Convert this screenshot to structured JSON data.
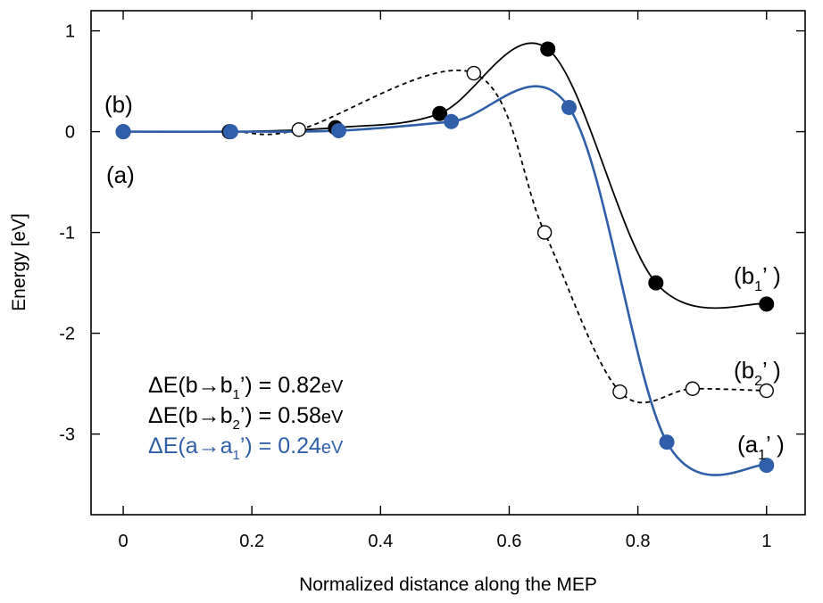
{
  "chart_data": {
    "type": "line",
    "title": "",
    "xlabel": "Normalized distance along the MEP",
    "ylabel": "Energy [eV]",
    "xlim": [
      -0.05,
      1.06
    ],
    "ylim": [
      -3.8,
      1.2
    ],
    "xticks": [
      0,
      0.2,
      0.4,
      0.6,
      0.8,
      1
    ],
    "xtick_labels": [
      "0",
      "0.2",
      "0.4",
      "0.6",
      "0.8",
      "1"
    ],
    "yticks": [
      1,
      0,
      -1,
      -2,
      -3
    ],
    "ytick_labels": [
      "1",
      "0",
      "-1",
      "-2",
      "-3"
    ],
    "grid": false,
    "series": [
      {
        "marker": "filled-circle",
        "line": "solid",
        "color": "#000000",
        "x": [
          0,
          0.165,
          0.33,
          0.492,
          0.66,
          0.828,
          1.0
        ],
        "y": [
          0.0,
          0.0,
          0.04,
          0.18,
          0.82,
          -1.5,
          -1.71
        ]
      },
      {
        "marker": "open-circle",
        "line": "dashed",
        "color": "#000000",
        "x": [
          0,
          0.165,
          0.273,
          0.545,
          0.655,
          0.772,
          0.885,
          1.0
        ],
        "y": [
          0.0,
          0.0,
          0.02,
          0.58,
          -1.0,
          -2.58,
          -2.55,
          -2.57
        ]
      },
      {
        "marker": "filled-circle",
        "line": "solid",
        "color": "#2f5fa8",
        "x": [
          0,
          0.167,
          0.335,
          0.51,
          0.693,
          0.845,
          1.0
        ],
        "y": [
          0.0,
          0.0,
          0.01,
          0.1,
          0.24,
          -3.08,
          -3.31
        ]
      }
    ],
    "annotations": {
      "b_start": "(b)",
      "a_start": "(a)",
      "b1_end": {
        "main": "(b",
        "sub": "1",
        "tail": "’ )"
      },
      "b2_end": {
        "main": "(b",
        "sub": "2",
        "tail": "’ )"
      },
      "a1_end": {
        "main": "(a",
        "sub": "1",
        "tail": "’ )"
      }
    },
    "legend_text": [
      {
        "prefix": "ΔE(b→b",
        "sub": "1",
        "middle": "’) = 0.82",
        "unit": "eV",
        "color": "#000000"
      },
      {
        "prefix": "ΔE(b→b",
        "sub": "2",
        "middle": "’) = 0.58",
        "unit": "eV",
        "color": "#000000"
      },
      {
        "prefix": "ΔE(a→a",
        "sub": "1",
        "middle": "’) = 0.24",
        "unit": "eV",
        "color": "#2f5fa8"
      }
    ]
  }
}
